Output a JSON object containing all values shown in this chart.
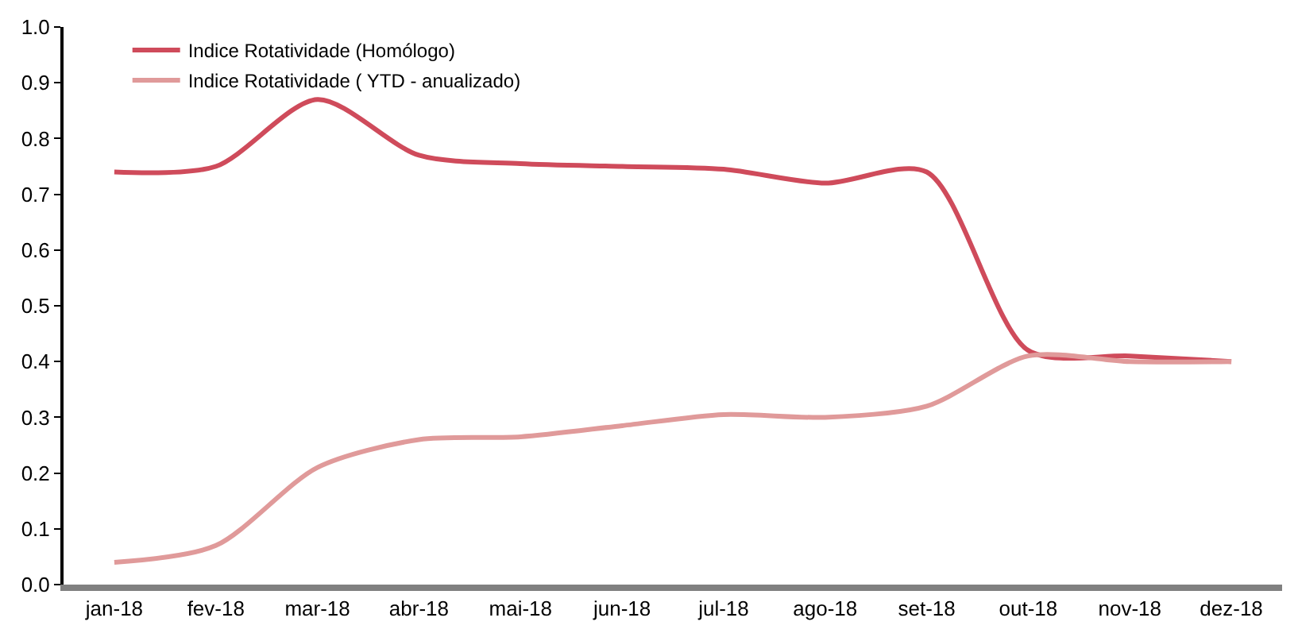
{
  "chart_data": {
    "type": "line",
    "categories": [
      "jan-18",
      "fev-18",
      "mar-18",
      "abr-18",
      "mai-18",
      "jun-18",
      "jul-18",
      "ago-18",
      "set-18",
      "out-18",
      "nov-18",
      "dez-18"
    ],
    "series": [
      {
        "name": "Indice Rotatividade (Homólogo)",
        "color": "#cf4b5b",
        "values": [
          0.74,
          0.75,
          0.87,
          0.77,
          0.755,
          0.75,
          0.745,
          0.72,
          0.74,
          0.42,
          0.41,
          0.4
        ]
      },
      {
        "name": "Indice Rotatividade ( YTD - anualizado)",
        "color": "#e09a9a",
        "values": [
          0.04,
          0.07,
          0.21,
          0.26,
          0.265,
          0.285,
          0.305,
          0.3,
          0.32,
          0.41,
          0.4,
          0.4
        ]
      }
    ],
    "ylim": [
      0,
      1.0
    ],
    "yticks": [
      {
        "value": 0,
        "label": "0.0"
      },
      {
        "value": 0.1,
        "label": "0.1"
      },
      {
        "value": 0.2,
        "label": "0.2"
      },
      {
        "value": 0.3,
        "label": "0.3"
      },
      {
        "value": 0.4,
        "label": "0.4"
      },
      {
        "value": 0.5,
        "label": "0.5"
      },
      {
        "value": 0.6,
        "label": "0.6"
      },
      {
        "value": 0.7,
        "label": "0.7"
      },
      {
        "value": 0.8,
        "label": "0.8"
      },
      {
        "value": 0.9,
        "label": "0.9"
      },
      {
        "value": 1.0,
        "label": "1.0"
      }
    ],
    "legend": "top left",
    "marker": "none",
    "line_style": "solid"
  }
}
